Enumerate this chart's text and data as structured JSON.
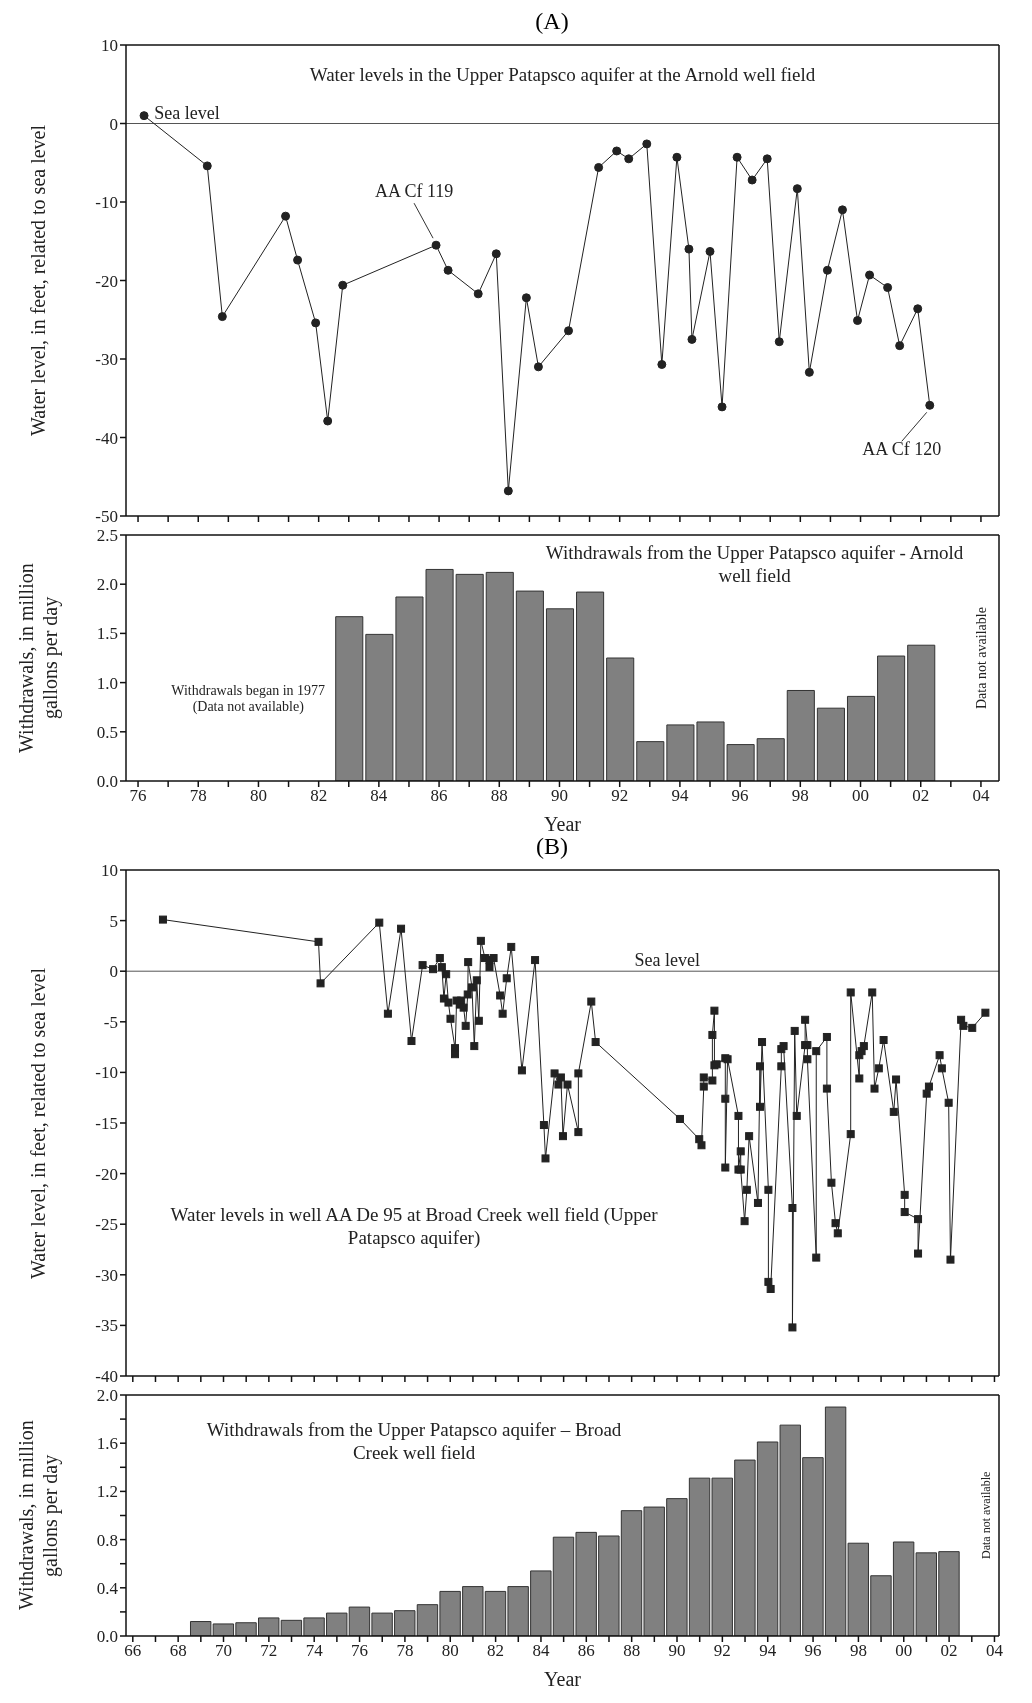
{
  "chart_data": [
    {
      "type": "line",
      "title": "(A)",
      "ylabel": "Water level, in feet, related to sea level",
      "marker": "circle",
      "color": "#222222",
      "tick_labels": "y",
      "x": [
        1976.2,
        1978.3,
        1978.8,
        1980.9,
        1981.3,
        1981.9,
        1982.3,
        1982.8,
        1985.9,
        1986.3,
        1987.3,
        1987.9,
        1988.3,
        1988.9,
        1989.3,
        1990.3,
        1991.3,
        1991.9,
        1992.3,
        1992.9,
        1993.4,
        1993.9,
        1994.3,
        1994.4,
        1995.0,
        1995.4,
        1995.9,
        1996.4,
        1996.9,
        1997.3,
        1997.9,
        1998.3,
        1998.9,
        1999.4,
        1999.9,
        2000.3,
        2000.9,
        2001.3,
        2001.9,
        2002.3
      ],
      "values": [
        1.0,
        -5.4,
        -24.6,
        -11.8,
        -17.4,
        -25.4,
        -37.9,
        -20.6,
        -15.5,
        -18.7,
        -21.7,
        -16.6,
        -46.8,
        -22.2,
        -31.0,
        -26.4,
        -5.6,
        -3.5,
        -4.5,
        -2.6,
        -30.7,
        -4.3,
        -16.0,
        -27.5,
        -16.3,
        -36.1,
        -4.3,
        -7.2,
        -4.5,
        -27.8,
        -8.3,
        -31.7,
        -18.7,
        -11.0,
        -25.1,
        -19.3,
        -20.9,
        -28.3,
        -23.6,
        -35.9
      ],
      "xlim": [
        1975.6,
        2004.6
      ],
      "xticks": [
        1976,
        1977,
        1978,
        1979,
        1980,
        1981,
        1982,
        1983,
        1984,
        1985,
        1986,
        1987,
        1988,
        1989,
        1990,
        1991,
        1992,
        1993,
        1994,
        1995,
        1996,
        1997,
        1998,
        1999,
        2000,
        2001,
        2002,
        2003,
        2004
      ],
      "ylim": [
        -50,
        10
      ],
      "yticks": [
        -50,
        -40,
        -30,
        -20,
        -10,
        0,
        10
      ],
      "ref_lines": [
        {
          "axis": "y",
          "value": 0,
          "label": "Sea level"
        }
      ],
      "annotations": [
        "Water levels in the Upper Patapsco aquifer at the Arnold well field",
        {
          "text": "AA Cf 119",
          "x": 1985.9,
          "y": -15.5
        },
        {
          "text": "AA Cf 120",
          "x": 2002.3,
          "y": -35.9
        }
      ]
    },
    {
      "type": "bar",
      "xlabel": "Year",
      "ylabel": "Withdrawals, in million gallons per day",
      "color": "#808080",
      "x": [
        1983,
        1984,
        1985,
        1986,
        1987,
        1988,
        1989,
        1990,
        1991,
        1992,
        1993,
        1994,
        1995,
        1996,
        1997,
        1998,
        1999,
        2000,
        2001,
        2002
      ],
      "values": [
        1.67,
        1.49,
        1.87,
        2.15,
        2.1,
        2.12,
        1.93,
        1.75,
        1.92,
        1.25,
        0.4,
        0.57,
        0.6,
        0.37,
        0.43,
        0.92,
        0.74,
        0.86,
        1.27,
        1.38
      ],
      "xlim": [
        1975.6,
        2004.6
      ],
      "xticks": [
        {
          "value": 1976,
          "label": "76"
        },
        {
          "value": 1977,
          "label": null
        },
        {
          "value": 1978,
          "label": "78"
        },
        {
          "value": 1979,
          "label": null
        },
        {
          "value": 1980,
          "label": "80"
        },
        {
          "value": 1981,
          "label": null
        },
        {
          "value": 1982,
          "label": "82"
        },
        {
          "value": 1983,
          "label": null
        },
        {
          "value": 1984,
          "label": "84"
        },
        {
          "value": 1985,
          "label": null
        },
        {
          "value": 1986,
          "label": "86"
        },
        {
          "value": 1987,
          "label": null
        },
        {
          "value": 1988,
          "label": "88"
        },
        {
          "value": 1989,
          "label": null
        },
        {
          "value": 1990,
          "label": "90"
        },
        {
          "value": 1991,
          "label": null
        },
        {
          "value": 1992,
          "label": "92"
        },
        {
          "value": 1993,
          "label": null
        },
        {
          "value": 1994,
          "label": "94"
        },
        {
          "value": 1995,
          "label": null
        },
        {
          "value": 1996,
          "label": "96"
        },
        {
          "value": 1997,
          "label": null
        },
        {
          "value": 1998,
          "label": "98"
        },
        {
          "value": 1999,
          "label": null
        },
        {
          "value": 2000,
          "label": "00"
        },
        {
          "value": 2001,
          "label": null
        },
        {
          "value": 2002,
          "label": "02"
        },
        {
          "value": 2003,
          "label": null
        },
        {
          "value": 2004,
          "label": "04"
        }
      ],
      "ylim": [
        0,
        2.5
      ],
      "yticks": [
        {
          "value": 0,
          "label": "0.0"
        },
        0.5,
        {
          "value": 1,
          "label": "1.0"
        },
        1.5,
        {
          "value": 2,
          "label": "2.0"
        },
        2.5
      ],
      "annotations": [
        "Withdrawals from the Upper Patapsco aquifer - Arnold well field",
        "Withdrawals began in 1977 (Data not available)",
        "Data not available"
      ]
    },
    {
      "type": "line",
      "title": "(B)",
      "ylabel": "Water level, in feet, related to sea level",
      "marker": "square",
      "color": "#222222",
      "tick_labels": "y",
      "x": [
        1967.33,
        1974.19,
        1974.28,
        1976.87,
        1977.25,
        1977.83,
        1978.29,
        1978.78,
        1979.24,
        1979.54,
        1979.63,
        1979.72,
        1979.82,
        1979.92,
        1980.01,
        1980.21,
        1980.21,
        1980.28,
        1980.42,
        1980.48,
        1980.59,
        1980.68,
        1980.77,
        1980.79,
        1980.96,
        1981.06,
        1981.17,
        1981.26,
        1981.35,
        1981.53,
        1981.73,
        1981.73,
        1981.91,
        1982.2,
        1982.31,
        1982.49,
        1982.69,
        1983.16,
        1983.74,
        1984.13,
        1984.2,
        1984.6,
        1984.77,
        1984.88,
        1984.97,
        1985.17,
        1985.65,
        1985.65,
        1986.22,
        1986.41,
        1990.13,
        1990.98,
        1991.08,
        1991.18,
        1991.18,
        1991.56,
        1991.56,
        1991.65,
        1991.65,
        1991.75,
        1992.13,
        1992.13,
        1992.13,
        1992.23,
        1992.71,
        1992.71,
        1992.81,
        1992.81,
        1992.98,
        1993.08,
        1993.18,
        1993.57,
        1993.66,
        1993.66,
        1993.75,
        1994.03,
        1994.03,
        1994.13,
        1994.6,
        1994.6,
        1994.7,
        1995.09,
        1995.09,
        1995.19,
        1995.28,
        1995.65,
        1995.65,
        1995.75,
        1995.75,
        1996.14,
        1996.14,
        1996.61,
        1996.61,
        1996.81,
        1996.99,
        1997.09,
        1997.66,
        1997.66,
        1998.04,
        1998.04,
        1998.14,
        1998.24,
        1998.61,
        1998.71,
        1998.9,
        1999.11,
        1999.56,
        1999.66,
        2000.04,
        2000.04,
        2000.63,
        2000.63,
        2001.01,
        2001.11,
        2001.58,
        2001.68,
        2001.98,
        2002.06,
        2002.53,
        2002.63,
        2003.02,
        2003.6
      ],
      "values": [
        5.1,
        2.9,
        -1.2,
        4.8,
        -4.2,
        4.2,
        -6.9,
        0.6,
        0.2,
        1.3,
        0.4,
        -2.7,
        -0.3,
        -3.1,
        -4.7,
        -7.6,
        -8.2,
        -2.9,
        -3.3,
        -2.9,
        -3.6,
        -5.4,
        -2.3,
        0.9,
        -1.6,
        -7.4,
        -0.9,
        -4.9,
        3.0,
        1.3,
        0.4,
        1.1,
        1.3,
        -2.4,
        -4.2,
        -0.7,
        2.4,
        -9.8,
        1.1,
        -15.2,
        -18.5,
        -10.1,
        -11.2,
        -10.5,
        -16.3,
        -11.2,
        -15.9,
        -10.1,
        -3.0,
        -7.0,
        -14.6,
        -16.6,
        -17.2,
        -11.4,
        -10.5,
        -10.8,
        -6.3,
        -3.9,
        -9.3,
        -9.2,
        -8.6,
        -12.6,
        -19.4,
        -8.7,
        -14.3,
        -19.6,
        -17.8,
        -19.6,
        -24.7,
        -21.6,
        -16.3,
        -22.9,
        -9.4,
        -13.4,
        -7.0,
        -21.6,
        -30.7,
        -31.4,
        -9.4,
        -7.7,
        -7.4,
        -23.4,
        -35.2,
        -5.9,
        -14.3,
        -7.3,
        -4.8,
        -7.3,
        -8.7,
        -28.3,
        -7.9,
        -6.5,
        -11.6,
        -20.9,
        -24.9,
        -25.9,
        -16.1,
        -2.1,
        -10.6,
        -8.3,
        -7.9,
        -7.4,
        -2.1,
        -11.6,
        -9.6,
        -6.8,
        -13.9,
        -10.7,
        -22.1,
        -23.8,
        -24.5,
        -27.9,
        -12.1,
        -11.4,
        -8.3,
        -9.6,
        -13.0,
        -28.5,
        -4.8,
        -5.4,
        -5.6,
        -4.1
      ],
      "xlim": [
        1965.7,
        2004.2
      ],
      "xticks": [
        1966,
        1967,
        1968,
        1969,
        1970,
        1971,
        1972,
        1973,
        1974,
        1975,
        1976,
        1977,
        1978,
        1979,
        1980,
        1981,
        1982,
        1983,
        1984,
        1985,
        1986,
        1987,
        1988,
        1989,
        1990,
        1991,
        1992,
        1993,
        1994,
        1995,
        1996,
        1997,
        1998,
        1999,
        2000,
        2001,
        2002,
        2003,
        2004
      ],
      "ylim": [
        -40,
        10
      ],
      "yticks": [
        -40,
        -35,
        -30,
        -25,
        -20,
        -15,
        -10,
        -5,
        0,
        5,
        10
      ],
      "ref_lines": [
        {
          "axis": "y",
          "value": 0,
          "label": "Sea level"
        }
      ],
      "annotations": [
        "Water levels in well AA De 95 at Broad Creek well field (Upper Patapsco aquifer)"
      ]
    },
    {
      "type": "bar",
      "xlabel": "Year",
      "ylabel": "Withdrawals, in million gallons per day",
      "color": "#808080",
      "x": [
        1969,
        1970,
        1971,
        1972,
        1973,
        1974,
        1975,
        1976,
        1977,
        1978,
        1979,
        1980,
        1981,
        1982,
        1983,
        1984,
        1985,
        1986,
        1987,
        1988,
        1989,
        1990,
        1991,
        1992,
        1993,
        1994,
        1995,
        1996,
        1997,
        1998,
        1999,
        2000,
        2001,
        2002
      ],
      "values": [
        0.12,
        0.1,
        0.11,
        0.15,
        0.13,
        0.15,
        0.19,
        0.24,
        0.19,
        0.21,
        0.26,
        0.37,
        0.41,
        0.37,
        0.41,
        0.54,
        0.82,
        0.86,
        0.83,
        1.04,
        1.07,
        1.14,
        1.31,
        1.31,
        1.46,
        1.61,
        1.75,
        1.48,
        1.9,
        0.77,
        0.5,
        0.78,
        0.69,
        0.7
      ],
      "xlim": [
        1965.7,
        2004.2
      ],
      "xticks": [
        {
          "value": 1966,
          "label": "66"
        },
        {
          "value": 1967,
          "label": null
        },
        {
          "value": 1968,
          "label": "68"
        },
        {
          "value": 1969,
          "label": null
        },
        {
          "value": 1970,
          "label": "70"
        },
        {
          "value": 1971,
          "label": null
        },
        {
          "value": 1972,
          "label": "72"
        },
        {
          "value": 1973,
          "label": null
        },
        {
          "value": 1974,
          "label": "74"
        },
        {
          "value": 1975,
          "label": null
        },
        {
          "value": 1976,
          "label": "76"
        },
        {
          "value": 1977,
          "label": null
        },
        {
          "value": 1978,
          "label": "78"
        },
        {
          "value": 1979,
          "label": null
        },
        {
          "value": 1980,
          "label": "80"
        },
        {
          "value": 1981,
          "label": null
        },
        {
          "value": 1982,
          "label": "82"
        },
        {
          "value": 1983,
          "label": null
        },
        {
          "value": 1984,
          "label": "84"
        },
        {
          "value": 1985,
          "label": null
        },
        {
          "value": 1986,
          "label": "86"
        },
        {
          "value": 1987,
          "label": null
        },
        {
          "value": 1988,
          "label": "88"
        },
        {
          "value": 1989,
          "label": null
        },
        {
          "value": 1990,
          "label": "90"
        },
        {
          "value": 1991,
          "label": null
        },
        {
          "value": 1992,
          "label": "92"
        },
        {
          "value": 1993,
          "label": null
        },
        {
          "value": 1994,
          "label": "94"
        },
        {
          "value": 1995,
          "label": null
        },
        {
          "value": 1996,
          "label": "96"
        },
        {
          "value": 1997,
          "label": null
        },
        {
          "value": 1998,
          "label": "98"
        },
        {
          "value": 1999,
          "label": null
        },
        {
          "value": 2000,
          "label": "00"
        },
        {
          "value": 2001,
          "label": null
        },
        {
          "value": 2002,
          "label": "02"
        },
        {
          "value": 2003,
          "label": null
        },
        {
          "value": 2004,
          "label": "04"
        }
      ],
      "ylim": [
        0,
        2
      ],
      "yticks": [
        {
          "value": 0,
          "label": "0.0"
        },
        {
          "value": 0.2,
          "label": null
        },
        0.4,
        {
          "value": 0.6,
          "label": null
        },
        0.8,
        {
          "value": 1,
          "label": null
        },
        1.2,
        {
          "value": 1.4,
          "label": null
        },
        1.6,
        {
          "value": 1.8,
          "label": null
        },
        {
          "value": 2,
          "label": "2.0"
        }
      ],
      "annotations": [
        "Withdrawals from the Upper Patapsco aquifer – Broad Creek well field",
        "Data not available"
      ]
    }
  ]
}
